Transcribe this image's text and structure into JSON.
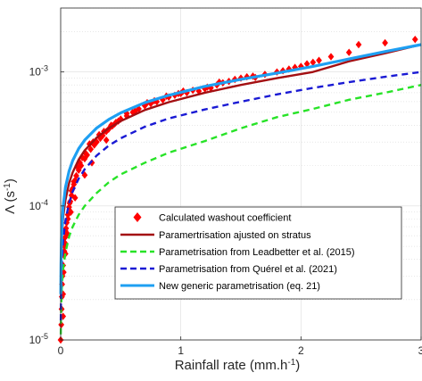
{
  "chart_data": {
    "type": "scatter",
    "title": "",
    "xlabel": {
      "main": "Rainfall rate (mm.h",
      "sup": "-1",
      "end": ")"
    },
    "ylabel": {
      "main": "Λ (s",
      "sup": "-1",
      "end": ")"
    },
    "xlim": [
      0,
      3
    ],
    "ylim": [
      1e-05,
      0.003
    ],
    "yscale": "log",
    "grid": true,
    "legend_position": "lower-right",
    "x_ticks": [
      {
        "value": 0,
        "label": "0"
      },
      {
        "value": 1,
        "label": "1"
      },
      {
        "value": 2,
        "label": "2"
      },
      {
        "value": 3,
        "label": "3"
      }
    ],
    "y_ticks": [
      {
        "value": 1e-05,
        "base": "10",
        "exp": "-5"
      },
      {
        "value": 0.0001,
        "base": "10",
        "exp": "-4"
      },
      {
        "value": 0.001,
        "base": "10",
        "exp": "-3"
      }
    ],
    "series": [
      {
        "name": "Calculated washout coefficient",
        "kind": "scatter",
        "marker": "diamond",
        "color": "#ff0000",
        "points": [
          [
            0.0,
            1e-05
          ],
          [
            0.005,
            1.3e-05
          ],
          [
            0.008,
            1.7e-05
          ],
          [
            0.01,
            2.1e-05
          ],
          [
            0.012,
            2.6e-05
          ],
          [
            0.015,
            3e-05
          ],
          [
            0.02,
            3.6e-05
          ],
          [
            0.025,
            4.3e-05
          ],
          [
            0.03,
            5e-05
          ],
          [
            0.035,
            5.8e-05
          ],
          [
            0.04,
            6.5e-05
          ],
          [
            0.05,
            7.5e-05
          ],
          [
            0.06,
            8.6e-05
          ],
          [
            0.07,
            9.8e-05
          ],
          [
            0.08,
            0.000108
          ],
          [
            0.09,
            0.00012
          ],
          [
            0.1,
            0.000135
          ],
          [
            0.11,
            0.000145
          ],
          [
            0.12,
            0.000155
          ],
          [
            0.13,
            0.000168
          ],
          [
            0.15,
            0.000185
          ],
          [
            0.17,
            0.0002
          ],
          [
            0.2,
            0.000225
          ],
          [
            0.22,
            0.00024
          ],
          [
            0.25,
            0.000265
          ],
          [
            0.28,
            0.000285
          ],
          [
            0.3,
            0.0003
          ],
          [
            0.33,
            0.00032
          ],
          [
            0.35,
            0.000335
          ],
          [
            0.38,
            0.00036
          ],
          [
            0.4,
            0.000375
          ],
          [
            0.43,
            0.000395
          ],
          [
            0.45,
            0.00041
          ],
          [
            0.48,
            0.00043
          ],
          [
            0.5,
            0.000445
          ],
          [
            0.55,
            0.00047
          ],
          [
            0.6,
            0.0005
          ],
          [
            0.65,
            0.00053
          ],
          [
            0.7,
            0.00056
          ],
          [
            0.75,
            0.00058
          ],
          [
            0.8,
            0.0006
          ],
          [
            0.85,
            0.00062
          ],
          [
            0.9,
            0.00065
          ],
          [
            0.95,
            0.00067
          ],
          [
            1.0,
            0.00069
          ],
          [
            1.05,
            0.0007
          ],
          [
            1.1,
            0.00073
          ],
          [
            1.15,
            0.00072
          ],
          [
            1.2,
            0.00075
          ],
          [
            1.25,
            0.00076
          ],
          [
            1.3,
            0.0008
          ],
          [
            1.35,
            0.00083
          ],
          [
            1.4,
            0.00085
          ],
          [
            1.45,
            0.00088
          ],
          [
            1.5,
            0.0009
          ],
          [
            1.6,
            0.00093
          ],
          [
            1.7,
            0.00096
          ],
          [
            1.8,
            0.001
          ],
          [
            1.85,
            0.00102
          ],
          [
            1.9,
            0.00105
          ],
          [
            2.0,
            0.0011
          ],
          [
            2.05,
            0.00115
          ],
          [
            2.15,
            0.00122
          ],
          [
            2.25,
            0.0013
          ],
          [
            2.4,
            0.0014
          ],
          [
            2.48,
            0.0016
          ],
          [
            2.7,
            0.00165
          ],
          [
            2.95,
            0.00175
          ],
          [
            0.035,
            5.3e-05
          ],
          [
            0.06,
            8e-05
          ],
          [
            0.09,
            0.00013
          ],
          [
            0.14,
            0.000195
          ],
          [
            0.18,
            0.00023
          ],
          [
            0.24,
            0.00029
          ],
          [
            0.32,
            0.00034
          ],
          [
            0.42,
            0.0004
          ],
          [
            0.55,
            0.00049
          ],
          [
            0.72,
            0.00059
          ],
          [
            0.88,
            0.00066
          ],
          [
            1.02,
            0.00072
          ],
          [
            1.32,
            0.00084
          ],
          [
            1.55,
            0.00092
          ],
          [
            1.95,
            0.00108
          ],
          [
            0.03,
            4.6e-05
          ],
          [
            0.045,
            6.8e-05
          ],
          [
            0.075,
            0.000105
          ],
          [
            0.11,
            0.000152
          ],
          [
            0.16,
            0.00021
          ],
          [
            0.21,
            0.000245
          ],
          [
            0.27,
            0.0003
          ],
          [
            0.36,
            0.00036
          ],
          [
            0.46,
            0.00042
          ],
          [
            0.62,
            0.00051
          ],
          [
            0.78,
            0.00061
          ],
          [
            0.98,
            0.00069
          ],
          [
            1.22,
            0.00077
          ],
          [
            1.62,
            0.00091
          ],
          [
            2.1,
            0.00118
          ],
          [
            0.02,
            1.5e-05
          ],
          [
            0.02,
            2.2e-05
          ],
          [
            0.025,
            3.2e-05
          ],
          [
            0.04,
            4.4e-05
          ],
          [
            0.055,
            6.2e-05
          ],
          [
            0.085,
            9e-05
          ],
          [
            0.12,
            0.000115
          ],
          [
            0.2,
            0.00017
          ],
          [
            0.26,
            0.00021
          ],
          [
            0.38,
            0.00031
          ]
        ]
      },
      {
        "name": "Paramertrisation ajusted on stratus",
        "kind": "line",
        "style": "solid",
        "color": "#a30f12",
        "x": [
          0.001,
          0.003,
          0.006,
          0.01,
          0.02,
          0.04,
          0.07,
          0.1,
          0.15,
          0.2,
          0.3,
          0.4,
          0.5,
          0.7,
          0.9,
          1.2,
          1.5,
          1.8,
          2.1,
          2.4,
          2.7,
          3.0
        ],
        "y": [
          2.5e-05,
          3.6e-05,
          4.9e-05,
          5.9e-05,
          8.2e-05,
          0.000111,
          0.000148,
          0.000178,
          0.000222,
          0.00026,
          0.000324,
          0.00038,
          0.00043,
          0.00052,
          0.000595,
          0.0007,
          0.0008,
          0.0009,
          0.001,
          0.0012,
          0.00138,
          0.0016
        ]
      },
      {
        "name": "Parametrisation from Leadbetter et al. (2015)",
        "kind": "line",
        "style": "dashed",
        "color": "#27e327",
        "x": [
          0.001,
          0.003,
          0.006,
          0.01,
          0.02,
          0.04,
          0.07,
          0.1,
          0.15,
          0.2,
          0.3,
          0.4,
          0.5,
          0.7,
          0.9,
          1.2,
          1.5,
          1.8,
          2.1,
          2.4,
          2.7,
          3.0
        ],
        "y": [
          1.1e-05,
          1.55e-05,
          2e-05,
          2.5e-05,
          3.35e-05,
          4.5e-05,
          5.9e-05,
          7e-05,
          8.6e-05,
          0.0001,
          0.000125,
          0.00015,
          0.000172,
          0.00021,
          0.00025,
          0.000305,
          0.00038,
          0.00046,
          0.00053,
          0.00062,
          0.0007,
          0.0008
        ]
      },
      {
        "name": "Parametrisation from Quérel et al. (2021)",
        "kind": "line",
        "style": "dashed",
        "color": "#1a1ad4",
        "x": [
          0.001,
          0.003,
          0.006,
          0.01,
          0.02,
          0.04,
          0.07,
          0.1,
          0.15,
          0.2,
          0.3,
          0.4,
          0.5,
          0.7,
          0.9,
          1.2,
          1.5,
          1.8,
          2.1,
          2.4,
          2.7,
          3.0
        ],
        "y": [
          1.4e-05,
          2.2e-05,
          3e-05,
          3.9e-05,
          5.5e-05,
          7.8e-05,
          0.000105,
          0.000128,
          0.00016,
          0.000188,
          0.000238,
          0.000282,
          0.00032,
          0.00039,
          0.00045,
          0.000525,
          0.0006,
          0.00068,
          0.00076,
          0.00084,
          0.00092,
          0.001
        ]
      },
      {
        "name": "New generic parametrisation (eq. 21)",
        "kind": "line",
        "style": "solid",
        "color": "#1e9ff2",
        "x": [
          0.001,
          0.003,
          0.006,
          0.01,
          0.02,
          0.04,
          0.07,
          0.1,
          0.15,
          0.2,
          0.3,
          0.4,
          0.5,
          0.7,
          0.9,
          1.2,
          1.5,
          1.8,
          2.1,
          2.4,
          2.7,
          3.0
        ],
        "y": [
          2.2e-05,
          3.6e-05,
          5.2e-05,
          6.8e-05,
          9.8e-05,
          0.000138,
          0.000182,
          0.000218,
          0.000268,
          0.00031,
          0.000382,
          0.000442,
          0.000495,
          0.00059,
          0.00067,
          0.00078,
          0.00088,
          0.00098,
          0.0011,
          0.00125,
          0.00142,
          0.0016
        ]
      }
    ]
  }
}
